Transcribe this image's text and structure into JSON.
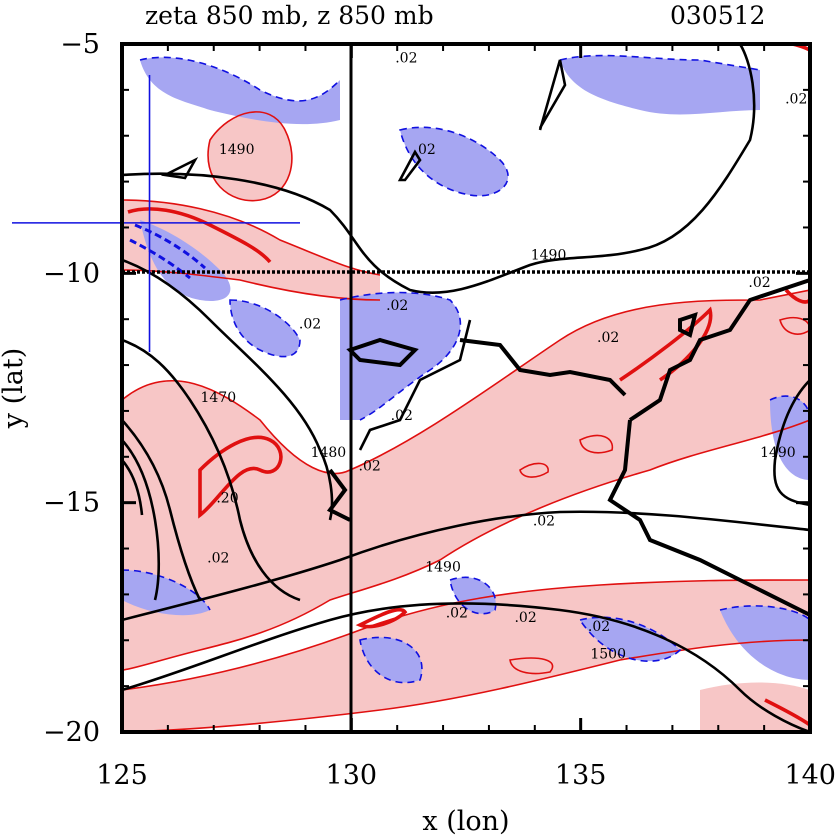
{
  "header": {
    "title": "zeta 850 mb, z 850 mb",
    "date": "030512"
  },
  "axes": {
    "xlabel": "x (lon)",
    "ylabel": "y (lat)"
  },
  "chart_data": {
    "type": "contour",
    "title": "zeta 850 mb, z 850 mb",
    "date_label": "030512",
    "xlabel": "x (lon)",
    "ylabel": "y (lat)",
    "xlim": [
      125,
      140
    ],
    "ylim": [
      -20,
      -5
    ],
    "x_ticks": [
      125,
      130,
      135,
      140
    ],
    "y_ticks": [
      -5,
      -10,
      -15,
      -20
    ],
    "grid_lines": {
      "x": 130,
      "y": -10
    },
    "center_marker": {
      "x": 125.6,
      "y": -8.9
    },
    "colors": {
      "positive_fill": "#f7c6c6",
      "negative_fill": "#a6a6f2",
      "positive_contour": "#e01010",
      "negative_contour": "#1010e0",
      "height_contour": "#000000"
    },
    "height_contour_labels": [
      {
        "text": "1490",
        "x": 127.5,
        "y": -7.4
      },
      {
        "text": "1490",
        "x": 134.3,
        "y": -9.7
      },
      {
        "text": "1470",
        "x": 127.1,
        "y": -12.8
      },
      {
        "text": "1480",
        "x": 129.5,
        "y": -14.0
      },
      {
        "text": "1490",
        "x": 132.0,
        "y": -16.5
      },
      {
        "text": "1500",
        "x": 135.6,
        "y": -18.4
      },
      {
        "text": "1490",
        "x": 139.3,
        "y": -14.0
      }
    ],
    "vorticity_labels": [
      {
        "text": ".02",
        "x": 131.2,
        "y": -5.4
      },
      {
        "text": ".02",
        "x": 131.6,
        "y": -7.4
      },
      {
        "text": ".02",
        "x": 131.0,
        "y": -10.8
      },
      {
        "text": ".02",
        "x": 129.1,
        "y": -11.2
      },
      {
        "text": ".02",
        "x": 131.1,
        "y": -13.2
      },
      {
        "text": ".02",
        "x": 130.4,
        "y": -14.3
      },
      {
        "text": ".02",
        "x": 135.6,
        "y": -11.5
      },
      {
        "text": ".02",
        "x": 138.9,
        "y": -10.3
      },
      {
        "text": ".02",
        "x": 134.2,
        "y": -15.5
      },
      {
        "text": ".02",
        "x": 127.1,
        "y": -16.3
      },
      {
        "text": ".02",
        "x": 133.8,
        "y": -17.6
      },
      {
        "text": ".02",
        "x": 132.3,
        "y": -17.5
      },
      {
        "text": ".02",
        "x": 135.4,
        "y": -17.8
      },
      {
        "text": ".02",
        "x": 139.7,
        "y": -6.3
      },
      {
        "text": ".20",
        "x": 127.3,
        "y": -15.0
      }
    ]
  }
}
